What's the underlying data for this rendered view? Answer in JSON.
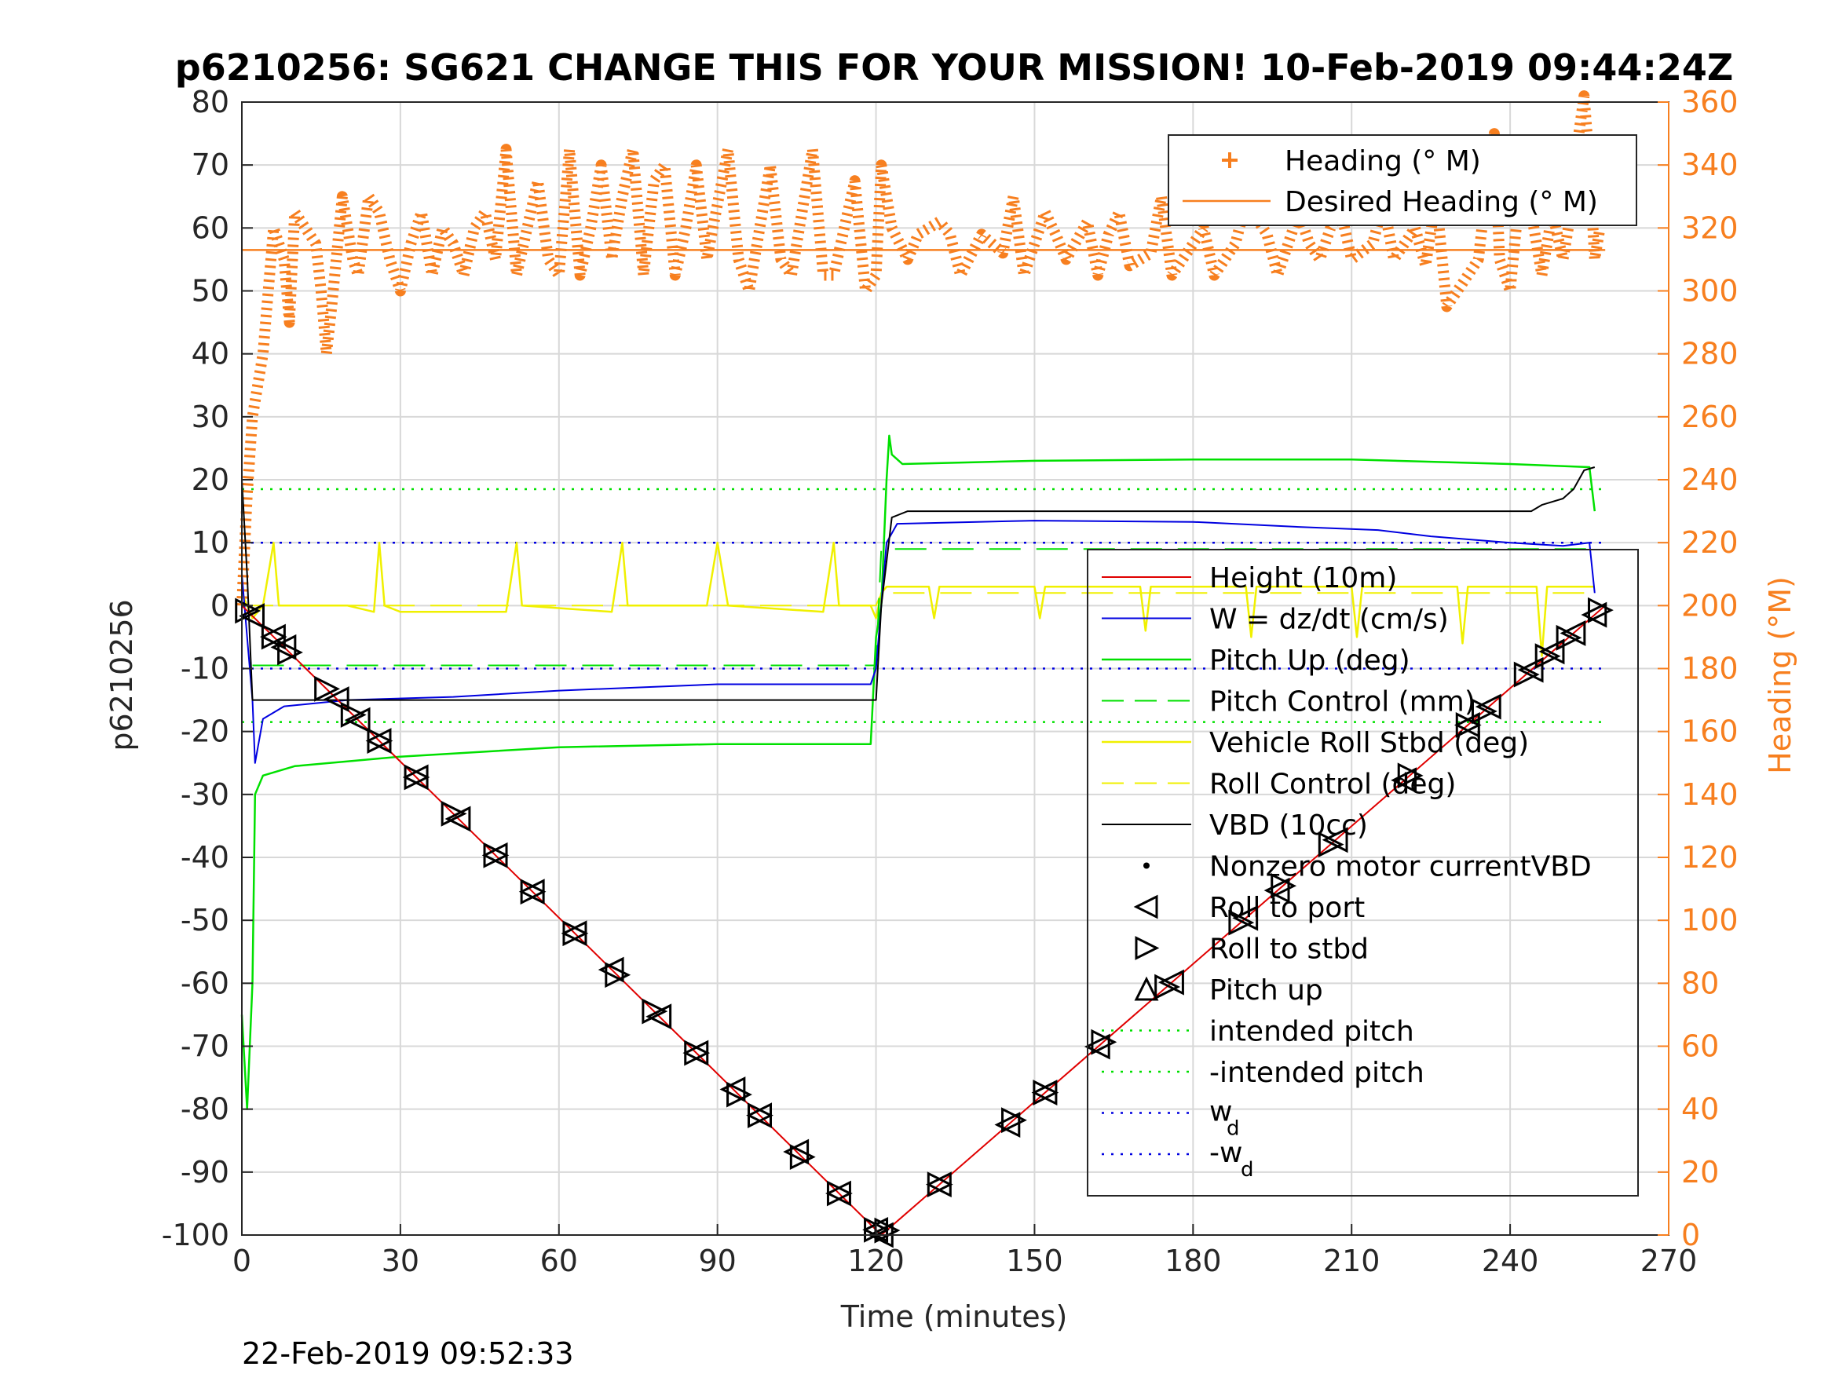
{
  "chart_data": {
    "type": "line",
    "title": "p6210256: SG621 CHANGE THIS FOR YOUR MISSION! 10-Feb-2019 09:44:24Z",
    "xlabel": "Time (minutes)",
    "ylabel": "p6210256",
    "ylabel_right": "Heading (°M)",
    "timestamp": "22-Feb-2019 09:52:33",
    "xlim": [
      0,
      270
    ],
    "ylim": [
      -100,
      80
    ],
    "ylim_right": [
      0,
      360
    ],
    "xticks": [
      "0",
      "30",
      "60",
      "90",
      "120",
      "150",
      "180",
      "210",
      "240",
      "270"
    ],
    "yticks": [
      "-100",
      "-90",
      "-80",
      "-70",
      "-60",
      "-50",
      "-40",
      "-30",
      "-20",
      "-10",
      "0",
      "10",
      "20",
      "30",
      "40",
      "50",
      "60",
      "70",
      "80"
    ],
    "yticks_right": [
      "0",
      "20",
      "40",
      "60",
      "80",
      "100",
      "120",
      "140",
      "160",
      "180",
      "200",
      "220",
      "240",
      "260",
      "280",
      "300",
      "320",
      "340",
      "360"
    ],
    "grid": true,
    "colors": {
      "heading": "#f77f1f",
      "height": "#e00000",
      "w": "#0000e0",
      "pitch": "#00e000",
      "roll": "#f0f000",
      "vbd": "#000000",
      "right_axis": "#f77f1f"
    },
    "legend_top": {
      "position": "top-right",
      "entries": [
        "Heading (° M)",
        "Desired Heading (° M)"
      ]
    },
    "legend_main": {
      "position": "right",
      "entries": [
        "Height (10m)",
        "W = dz/dt (cm/s)",
        "Pitch Up (deg)",
        "Pitch Control (mm)",
        "Vehicle Roll Stbd (deg)",
        "Roll Control (deg)",
        "VBD (10cc)",
        "Nonzero motor currentVBD",
        "Roll to port",
        "Roll to stbd",
        "Pitch up",
        "intended pitch",
        "-intended pitch"
      ],
      "wd_label": "w",
      "wd_sub": "d",
      "neg_wd_label": "-w",
      "neg_wd_sub": "d"
    },
    "series": [
      {
        "name": "Height (10m)",
        "axis": "left",
        "points": [
          [
            0,
            0
          ],
          [
            121,
            -100
          ],
          [
            258,
            0
          ]
        ]
      },
      {
        "name": "W = dz/dt (cm/s)",
        "axis": "left",
        "points": [
          [
            0,
            5
          ],
          [
            1,
            -5
          ],
          [
            2,
            -15
          ],
          [
            2.5,
            -25
          ],
          [
            4,
            -18
          ],
          [
            8,
            -16
          ],
          [
            20,
            -15
          ],
          [
            40,
            -14.5
          ],
          [
            60,
            -13.5
          ],
          [
            90,
            -12.5
          ],
          [
            119,
            -12.5
          ],
          [
            120,
            -10
          ],
          [
            121,
            0
          ],
          [
            122,
            10
          ],
          [
            124,
            13
          ],
          [
            150,
            13.5
          ],
          [
            180,
            13.3
          ],
          [
            200,
            12.5
          ],
          [
            215,
            12
          ],
          [
            225,
            11
          ],
          [
            240,
            10
          ],
          [
            250,
            9.5
          ],
          [
            255,
            10
          ],
          [
            256,
            2
          ]
        ]
      },
      {
        "name": "Pitch Up (deg)",
        "axis": "left",
        "points": [
          [
            0,
            -65
          ],
          [
            1,
            -80
          ],
          [
            2,
            -60
          ],
          [
            2.5,
            -30
          ],
          [
            4,
            -27
          ],
          [
            10,
            -25.5
          ],
          [
            30,
            -24
          ],
          [
            60,
            -22.5
          ],
          [
            90,
            -22
          ],
          [
            119,
            -22
          ],
          [
            120,
            -5
          ],
          [
            121,
            0
          ],
          [
            122,
            20
          ],
          [
            122.5,
            27
          ],
          [
            123,
            24
          ],
          [
            125,
            22.5
          ],
          [
            150,
            23
          ],
          [
            180,
            23.2
          ],
          [
            210,
            23.2
          ],
          [
            240,
            22.5
          ],
          [
            255,
            22
          ],
          [
            256,
            15
          ]
        ]
      },
      {
        "name": "Pitch Control (mm)",
        "axis": "left",
        "points": [
          [
            2,
            -9.5
          ],
          [
            120,
            -9.5
          ],
          [
            121,
            9
          ],
          [
            256,
            9
          ]
        ]
      },
      {
        "name": "VBD (10cc)",
        "axis": "left",
        "points": [
          [
            0,
            20
          ],
          [
            1,
            5
          ],
          [
            2,
            -15
          ],
          [
            120,
            -15
          ],
          [
            121,
            0
          ],
          [
            123,
            14
          ],
          [
            126,
            15
          ],
          [
            200,
            15
          ],
          [
            244,
            15
          ],
          [
            246,
            16
          ],
          [
            250,
            17
          ],
          [
            252,
            18.5
          ],
          [
            254,
            21.5
          ],
          [
            256,
            22
          ]
        ]
      },
      {
        "name": "intended pitch",
        "axis": "left",
        "points": [
          [
            0,
            18.5
          ],
          [
            258,
            18.5
          ]
        ]
      },
      {
        "name": "-intended pitch",
        "axis": "left",
        "points": [
          [
            0,
            -18.5
          ],
          [
            258,
            -18.5
          ]
        ]
      },
      {
        "name": "w_d",
        "axis": "left",
        "points": [
          [
            0,
            10
          ],
          [
            258,
            10
          ]
        ]
      },
      {
        "name": "-w_d",
        "axis": "left",
        "points": [
          [
            0,
            -10
          ],
          [
            258,
            -10
          ]
        ]
      },
      {
        "name": "Desired Heading (° M)",
        "axis": "right",
        "points": [
          [
            0,
            313
          ],
          [
            258,
            313
          ]
        ]
      },
      {
        "name": "Heading (° M)",
        "axis": "right",
        "points": [
          [
            0,
            200
          ],
          [
            1,
            235
          ],
          [
            2,
            260
          ],
          [
            3,
            270
          ],
          [
            4,
            280
          ],
          [
            5,
            300
          ],
          [
            6,
            320
          ],
          [
            8,
            310
          ],
          [
            9,
            290
          ],
          [
            10,
            325
          ],
          [
            12,
            320
          ],
          [
            14,
            315
          ],
          [
            15,
            300
          ],
          [
            16,
            280
          ],
          [
            17,
            295
          ],
          [
            19,
            330
          ],
          [
            21,
            310
          ],
          [
            22,
            305
          ],
          [
            24,
            330
          ],
          [
            26,
            325
          ],
          [
            28,
            310
          ],
          [
            30,
            300
          ],
          [
            32,
            315
          ],
          [
            34,
            325
          ],
          [
            36,
            305
          ],
          [
            38,
            320
          ],
          [
            40,
            315
          ],
          [
            42,
            305
          ],
          [
            44,
            320
          ],
          [
            46,
            325
          ],
          [
            48,
            310
          ],
          [
            50,
            345
          ],
          [
            52,
            305
          ],
          [
            54,
            320
          ],
          [
            56,
            335
          ],
          [
            58,
            310
          ],
          [
            60,
            305
          ],
          [
            62,
            345
          ],
          [
            64,
            305
          ],
          [
            66,
            320
          ],
          [
            68,
            340
          ],
          [
            70,
            310
          ],
          [
            72,
            330
          ],
          [
            74,
            345
          ],
          [
            76,
            305
          ],
          [
            78,
            335
          ],
          [
            80,
            340
          ],
          [
            82,
            305
          ],
          [
            84,
            320
          ],
          [
            86,
            340
          ],
          [
            88,
            310
          ],
          [
            92,
            345
          ],
          [
            94,
            310
          ],
          [
            96,
            300
          ],
          [
            100,
            340
          ],
          [
            102,
            310
          ],
          [
            104,
            305
          ],
          [
            108,
            345
          ],
          [
            110,
            305
          ],
          [
            112,
            305
          ],
          [
            116,
            335
          ],
          [
            118,
            300
          ],
          [
            120,
            305
          ],
          [
            121,
            340
          ],
          [
            123,
            320
          ],
          [
            126,
            310
          ],
          [
            128,
            318
          ],
          [
            132,
            322
          ],
          [
            134,
            318
          ],
          [
            136,
            305
          ],
          [
            140,
            318
          ],
          [
            144,
            312
          ],
          [
            146,
            330
          ],
          [
            148,
            305
          ],
          [
            152,
            325
          ],
          [
            154,
            318
          ],
          [
            156,
            310
          ],
          [
            160,
            322
          ],
          [
            162,
            305
          ],
          [
            164,
            318
          ],
          [
            166,
            325
          ],
          [
            168,
            308
          ],
          [
            172,
            312
          ],
          [
            174,
            330
          ],
          [
            176,
            305
          ],
          [
            180,
            315
          ],
          [
            182,
            320
          ],
          [
            184,
            305
          ],
          [
            188,
            315
          ],
          [
            190,
            328
          ],
          [
            194,
            318
          ],
          [
            196,
            305
          ],
          [
            200,
            325
          ],
          [
            202,
            315
          ],
          [
            204,
            310
          ],
          [
            206,
            320
          ],
          [
            208,
            325
          ],
          [
            210,
            310
          ],
          [
            214,
            315
          ],
          [
            216,
            328
          ],
          [
            218,
            310
          ],
          [
            220,
            315
          ],
          [
            222,
            320
          ],
          [
            224,
            308
          ],
          [
            226,
            330
          ],
          [
            228,
            295
          ],
          [
            232,
            305
          ],
          [
            234,
            310
          ],
          [
            236,
            340
          ],
          [
            237,
            350
          ],
          [
            238,
            310
          ],
          [
            240,
            300
          ],
          [
            242,
            335
          ],
          [
            244,
            325
          ],
          [
            246,
            305
          ],
          [
            248,
            325
          ],
          [
            250,
            310
          ],
          [
            252,
            330
          ],
          [
            253,
            350
          ],
          [
            254,
            362
          ],
          [
            255,
            340
          ],
          [
            256,
            310
          ],
          [
            257,
            320
          ]
        ]
      },
      {
        "name": "Vehicle Roll Stbd (deg)",
        "axis": "left",
        "points": [
          [
            0,
            2
          ],
          [
            2,
            -2
          ],
          [
            4,
            0
          ],
          [
            6,
            10
          ],
          [
            7,
            0
          ],
          [
            20,
            0
          ],
          [
            25,
            -1
          ],
          [
            26,
            10
          ],
          [
            27,
            0
          ],
          [
            30,
            -1
          ],
          [
            50,
            -1
          ],
          [
            52,
            10
          ],
          [
            53,
            0
          ],
          [
            70,
            -1
          ],
          [
            72,
            10
          ],
          [
            73,
            0
          ],
          [
            88,
            0
          ],
          [
            90,
            10
          ],
          [
            92,
            0
          ],
          [
            110,
            -1
          ],
          [
            112,
            10
          ],
          [
            113,
            0
          ],
          [
            119,
            0
          ],
          [
            120,
            -2
          ],
          [
            121,
            2
          ],
          [
            122,
            3
          ],
          [
            130,
            3
          ],
          [
            131,
            -2
          ],
          [
            132,
            3
          ],
          [
            150,
            3
          ],
          [
            151,
            -2
          ],
          [
            152,
            3
          ],
          [
            170,
            3
          ],
          [
            171,
            -4
          ],
          [
            172,
            3
          ],
          [
            190,
            3
          ],
          [
            191,
            -5
          ],
          [
            192,
            3
          ],
          [
            210,
            3
          ],
          [
            211,
            -5
          ],
          [
            212,
            3
          ],
          [
            230,
            3
          ],
          [
            231,
            -6
          ],
          [
            232,
            3
          ],
          [
            245,
            3
          ],
          [
            246,
            -8
          ],
          [
            247,
            3
          ],
          [
            256,
            3
          ]
        ]
      },
      {
        "name": "Roll Control (deg)",
        "axis": "left",
        "points": [
          [
            0,
            0
          ],
          [
            120,
            0
          ],
          [
            121,
            2
          ],
          [
            256,
            2
          ]
        ]
      }
    ],
    "markers": {
      "roll_to_port_x": [
        2,
        6,
        8,
        18,
        22,
        26,
        33,
        41,
        48,
        55,
        63,
        70,
        79,
        86,
        93,
        98,
        105,
        113,
        120,
        121,
        132,
        145,
        152,
        162,
        176,
        190,
        196,
        207,
        220,
        232,
        236,
        244,
        248,
        252,
        256
      ],
      "roll_to_stbd_x": [
        1,
        6,
        9,
        16,
        21,
        26,
        33,
        40,
        48,
        55,
        63,
        71,
        78,
        86,
        94,
        98,
        106,
        113,
        120,
        122,
        132,
        146,
        152,
        163,
        175,
        189,
        197,
        206,
        221,
        232,
        235,
        243,
        247,
        251,
        257
      ]
    }
  }
}
